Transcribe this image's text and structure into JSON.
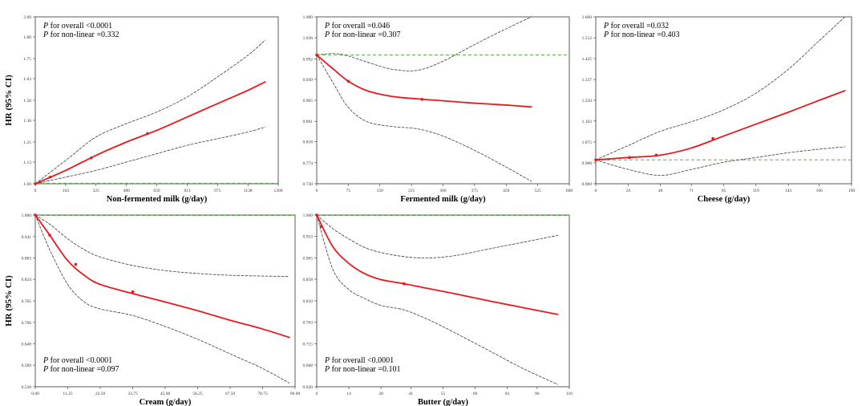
{
  "colors": {
    "fit": "#e8191c",
    "ci": "#3a3a3a",
    "ref": "#5aae4a",
    "axis": "#333333"
  },
  "chart_data": [
    {
      "type": "line",
      "name": "non-fermented-milk",
      "ylabel": "HR (95% CI)",
      "xlabel": "Non-fermented milk (g/day)",
      "annotations": [
        {
          "p": "P",
          "text": " for overall <0.0001"
        },
        {
          "p": "P",
          "text": " for non-linear =0.332"
        }
      ],
      "xlim": [
        0,
        1300
      ],
      "ylim": [
        1.0,
        2.0
      ],
      "xticks": [
        0,
        163,
        325,
        488,
        650,
        813,
        975,
        1138,
        1300
      ],
      "xtick_labels": [
        "0",
        "163",
        "325",
        "488",
        "650",
        "813",
        "975",
        "1138",
        "1300"
      ],
      "yticks": [
        1.0,
        1.13,
        1.25,
        1.38,
        1.5,
        1.63,
        1.75,
        1.88,
        2.0
      ],
      "ytick_labels": [
        "1.00",
        "1.13",
        "1.25",
        "1.38",
        "1.50",
        "1.63",
        "1.75",
        "1.88",
        "2.00"
      ],
      "reference": 1.0,
      "series": [
        {
          "name": "HR",
          "x": [
            0,
            163,
            325,
            488,
            650,
            813,
            975,
            1138,
            1230
          ],
          "y": [
            1.0,
            1.08,
            1.17,
            1.25,
            1.32,
            1.4,
            1.48,
            1.56,
            1.61
          ]
        },
        {
          "name": "Upper 95% CI",
          "x": [
            0,
            163,
            325,
            488,
            650,
            813,
            975,
            1138,
            1230
          ],
          "y": [
            1.0,
            1.14,
            1.28,
            1.36,
            1.43,
            1.52,
            1.64,
            1.77,
            1.86
          ]
        },
        {
          "name": "Lower 95% CI",
          "x": [
            0,
            163,
            325,
            488,
            650,
            813,
            975,
            1138,
            1230
          ],
          "y": [
            1.0,
            1.04,
            1.08,
            1.13,
            1.18,
            1.23,
            1.27,
            1.31,
            1.34
          ]
        }
      ],
      "markers": {
        "x": [
          0,
          80,
          300,
          600
        ],
        "y": [
          1.0,
          1.04,
          1.155,
          1.3
        ]
      }
    },
    {
      "type": "line",
      "name": "fermented-milk",
      "ylabel": "",
      "xlabel": "Fermented milk (g/day)",
      "annotations": [
        {
          "p": "P",
          "text": " for overall =0.046"
        },
        {
          "p": "P",
          "text": " for non-linear =0.307"
        }
      ],
      "xlim": [
        0,
        600
      ],
      "ylim": [
        0.73,
        1.08
      ],
      "xticks": [
        0,
        75,
        150,
        225,
        300,
        375,
        450,
        525,
        600
      ],
      "xtick_labels": [
        "0",
        "75",
        "150",
        "225",
        "300",
        "375",
        "450",
        "525",
        "600"
      ],
      "yticks": [
        0.73,
        0.774,
        0.818,
        0.861,
        0.905,
        0.949,
        0.992,
        1.036,
        1.08
      ],
      "ytick_labels": [
        "0.730",
        "0.774",
        "0.818",
        "0.861",
        "0.905",
        "0.949",
        "0.992",
        "1.036",
        "1.080"
      ],
      "reference": 1.0,
      "series": [
        {
          "name": "HR",
          "x": [
            0,
            40,
            75,
            120,
            180,
            240,
            300,
            375,
            450,
            510
          ],
          "y": [
            1.0,
            0.97,
            0.945,
            0.925,
            0.913,
            0.908,
            0.904,
            0.899,
            0.895,
            0.891
          ]
        },
        {
          "name": "Upper 95% CI",
          "x": [
            0,
            40,
            75,
            120,
            180,
            240,
            300,
            375,
            450,
            510
          ],
          "y": [
            1.0,
            1.003,
            0.998,
            0.985,
            0.97,
            0.968,
            0.987,
            1.022,
            1.055,
            1.08
          ]
        },
        {
          "name": "Lower 95% CI",
          "x": [
            0,
            40,
            75,
            120,
            180,
            240,
            300,
            375,
            450,
            510
          ],
          "y": [
            1.0,
            0.94,
            0.89,
            0.86,
            0.85,
            0.845,
            0.83,
            0.8,
            0.765,
            0.735
          ]
        }
      ],
      "markers": {
        "x": [
          0,
          75,
          250
        ],
        "y": [
          1.0,
          0.945,
          0.907
        ]
      }
    },
    {
      "type": "line",
      "name": "cheese",
      "ylabel": "",
      "xlabel": "Cheese (g/day)",
      "annotations": [
        {
          "p": "P",
          "text": " for overall =0.032"
        },
        {
          "p": "P",
          "text": " for non-linear =0.403"
        }
      ],
      "xlim": [
        0,
        190
      ],
      "ylim": [
        0.9,
        1.6
      ],
      "xticks": [
        0,
        24,
        48,
        71,
        95,
        119,
        143,
        166,
        190
      ],
      "xtick_labels": [
        "0",
        "24",
        "48",
        "71",
        "95",
        "119",
        "143",
        "166",
        "190"
      ],
      "yticks": [
        0.9,
        0.988,
        1.075,
        1.163,
        1.25,
        1.337,
        1.425,
        1.512,
        1.6
      ],
      "ytick_labels": [
        "0.900",
        "0.988",
        "1.075",
        "1.163",
        "1.250",
        "1.337",
        "1.425",
        "1.512",
        "1.600"
      ],
      "reference": 1.0,
      "series": [
        {
          "name": "HR",
          "x": [
            0,
            24,
            48,
            71,
            95,
            119,
            143,
            166,
            185
          ],
          "y": [
            1.0,
            1.01,
            1.02,
            1.05,
            1.1,
            1.15,
            1.2,
            1.25,
            1.29
          ]
        },
        {
          "name": "Upper 95% CI",
          "x": [
            0,
            24,
            48,
            71,
            95,
            119,
            143,
            166,
            185
          ],
          "y": [
            1.0,
            1.06,
            1.12,
            1.16,
            1.21,
            1.28,
            1.38,
            1.5,
            1.6
          ]
        },
        {
          "name": "Lower 95% CI",
          "x": [
            0,
            24,
            48,
            71,
            95,
            119,
            143,
            166,
            185
          ],
          "y": [
            1.0,
            0.96,
            0.935,
            0.96,
            0.99,
            1.01,
            1.03,
            1.045,
            1.055
          ]
        }
      ],
      "markers": {
        "x": [
          0,
          25,
          45,
          87
        ],
        "y": [
          1.0,
          1.01,
          1.02,
          1.09
        ]
      }
    },
    {
      "type": "line",
      "name": "cream",
      "ylabel": "HR (95% CI)",
      "xlabel": "Cream (g/day)",
      "annotations": [
        {
          "p": "P",
          "text": " for overall <0.0001"
        },
        {
          "p": "P",
          "text": " for non-linear =0.097"
        }
      ],
      "xlim": [
        0,
        90
      ],
      "ylim": [
        0.53,
        1.0
      ],
      "xticks": [
        0,
        11.25,
        22.5,
        33.75,
        45,
        56.25,
        67.5,
        78.75,
        90
      ],
      "xtick_labels": [
        "0.00",
        "11.25",
        "22.50",
        "33.75",
        "45.00",
        "56.25",
        "67.50",
        "78.75",
        "90.00"
      ],
      "yticks": [
        0.53,
        0.589,
        0.648,
        0.706,
        0.765,
        0.824,
        0.883,
        0.941,
        1.0
      ],
      "ytick_labels": [
        "0.530",
        "0.589",
        "0.648",
        "0.706",
        "0.765",
        "0.824",
        "0.883",
        "0.941",
        "1.000"
      ],
      "reference": 1.0,
      "series": [
        {
          "name": "HR",
          "x": [
            0,
            5,
            11.25,
            17,
            22.5,
            33.75,
            45,
            56.25,
            67.5,
            78.75,
            88
          ],
          "y": [
            1.0,
            0.945,
            0.875,
            0.835,
            0.81,
            0.785,
            0.762,
            0.738,
            0.712,
            0.688,
            0.665
          ]
        },
        {
          "name": "Upper 95% CI",
          "x": [
            0,
            5,
            11.25,
            17,
            22.5,
            33.75,
            45,
            56.25,
            67.5,
            78.75,
            88
          ],
          "y": [
            1.0,
            0.975,
            0.935,
            0.905,
            0.885,
            0.862,
            0.848,
            0.84,
            0.835,
            0.833,
            0.832
          ]
        },
        {
          "name": "Lower 95% CI",
          "x": [
            0,
            5,
            11.25,
            17,
            22.5,
            33.75,
            45,
            56.25,
            67.5,
            78.75,
            88
          ],
          "y": [
            1.0,
            0.905,
            0.81,
            0.762,
            0.743,
            0.725,
            0.695,
            0.66,
            0.62,
            0.58,
            0.54
          ]
        }
      ],
      "markers": {
        "x": [
          0,
          5,
          14,
          33.75
        ],
        "y": [
          1.0,
          0.945,
          0.865,
          0.79
        ]
      }
    },
    {
      "type": "line",
      "name": "butter",
      "ylabel": "",
      "xlabel": "Butter (g/day)",
      "annotations": [
        {
          "p": "P",
          "text": " for overall <0.0001"
        },
        {
          "p": "P",
          "text": " for non-linear =0.101"
        }
      ],
      "xlim": [
        0,
        110
      ],
      "ylim": [
        0.62,
        1.0
      ],
      "xticks": [
        0,
        14,
        28,
        41,
        55,
        69,
        83,
        96,
        110
      ],
      "xtick_labels": [
        "0",
        "14",
        "28",
        "41",
        "55",
        "69",
        "83",
        "96",
        "110"
      ],
      "yticks": [
        0.62,
        0.668,
        0.715,
        0.763,
        0.81,
        0.858,
        0.905,
        0.953,
        1.0
      ],
      "ytick_labels": [
        "0.620",
        "0.668",
        "0.715",
        "0.763",
        "0.810",
        "0.858",
        "0.905",
        "0.953",
        "1.000"
      ],
      "reference": 1.0,
      "series": [
        {
          "name": "HR",
          "x": [
            0,
            7,
            14,
            21,
            28,
            38,
            48,
            60,
            75,
            90,
            105
          ],
          "y": [
            1.0,
            0.93,
            0.893,
            0.87,
            0.857,
            0.848,
            0.838,
            0.826,
            0.81,
            0.795,
            0.78
          ]
        },
        {
          "name": "Upper 95% CI",
          "x": [
            0,
            7,
            14,
            21,
            28,
            38,
            48,
            60,
            75,
            90,
            105
          ],
          "y": [
            1.0,
            0.97,
            0.947,
            0.928,
            0.917,
            0.908,
            0.905,
            0.91,
            0.925,
            0.94,
            0.955
          ]
        },
        {
          "name": "Lower 95% CI",
          "x": [
            0,
            7,
            14,
            21,
            28,
            38,
            48,
            60,
            75,
            90,
            105
          ],
          "y": [
            1.0,
            0.88,
            0.835,
            0.815,
            0.8,
            0.79,
            0.77,
            0.74,
            0.7,
            0.66,
            0.625
          ]
        }
      ],
      "markers": {
        "x": [
          0,
          2,
          38
        ],
        "y": [
          1.0,
          0.975,
          0.848
        ]
      }
    }
  ]
}
